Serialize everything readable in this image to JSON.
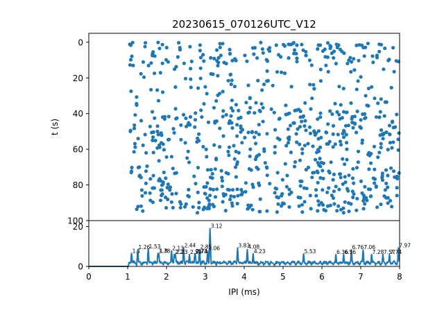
{
  "colors": {
    "series": "#1f77b4",
    "axes": "#000000",
    "background": "#ffffff"
  },
  "chart_data": [
    {
      "type": "scatter",
      "title": "20230615_070126UTC_V12",
      "ylabel": "t (s)",
      "xlim": [
        0,
        8
      ],
      "ylim": [
        100,
        -5
      ],
      "yticks": [
        "0",
        "20",
        "40",
        "60",
        "80",
        "100"
      ],
      "grid": false,
      "point_x_range": [
        1.05,
        8.0
      ],
      "point_y_range": [
        0,
        96
      ],
      "point_count": 820,
      "band_density": [
        {
          "t_from": 0,
          "t_to": 12,
          "level": "dense"
        },
        {
          "t_from": 12,
          "t_to": 38,
          "level": "sparse"
        },
        {
          "t_from": 38,
          "t_to": 62,
          "level": "dense"
        },
        {
          "t_from": 62,
          "t_to": 70,
          "level": "sparse"
        },
        {
          "t_from": 70,
          "t_to": 96,
          "level": "dense"
        }
      ]
    },
    {
      "type": "line",
      "xlabel": "IPI (ms)",
      "ylabel": "",
      "xlim": [
        0,
        8
      ],
      "ylim": [
        0,
        23
      ],
      "xticks": [
        "0",
        "1",
        "2",
        "3",
        "4",
        "5",
        "6",
        "7",
        "8"
      ],
      "yticks": [
        "0",
        "20"
      ],
      "grid": false,
      "peaks": [
        {
          "x": 1.1,
          "y": 6.5,
          "label": "1.1"
        },
        {
          "x": 1.26,
          "y": 8.3,
          "label": "1.26"
        },
        {
          "x": 1.53,
          "y": 8.7,
          "label": "1.53"
        },
        {
          "x": 1.78,
          "y": 6.5,
          "label": "1.78"
        },
        {
          "x": 1.8,
          "y": 6.5,
          "label": "1.8"
        },
        {
          "x": 2.13,
          "y": 7.8,
          "label": "2.13"
        },
        {
          "x": 2.2,
          "y": 6.0,
          "label": "2.2"
        },
        {
          "x": 2.23,
          "y": 6.0,
          "label": "2.23"
        },
        {
          "x": 2.44,
          "y": 9.3,
          "label": "2.44"
        },
        {
          "x": 2.59,
          "y": 6.0,
          "label": "2.59"
        },
        {
          "x": 2.73,
          "y": 6.3,
          "label": "2.73"
        },
        {
          "x": 2.74,
          "y": 6.3,
          "label": "2.74"
        },
        {
          "x": 2.85,
          "y": 8.5,
          "label": "2.85"
        },
        {
          "x": 3.06,
          "y": 7.8,
          "label": "3.06"
        },
        {
          "x": 3.12,
          "y": 19.0,
          "label": "3.12"
        },
        {
          "x": 3.83,
          "y": 9.3,
          "label": "3.83"
        },
        {
          "x": 4.08,
          "y": 8.5,
          "label": "4.08"
        },
        {
          "x": 4.23,
          "y": 6.3,
          "label": "4.23"
        },
        {
          "x": 5.53,
          "y": 6.3,
          "label": "5.53"
        },
        {
          "x": 6.36,
          "y": 6.0,
          "label": "6.36"
        },
        {
          "x": 6.56,
          "y": 6.0,
          "label": "6.56"
        },
        {
          "x": 6.76,
          "y": 8.3,
          "label": "6.76"
        },
        {
          "x": 7.06,
          "y": 8.3,
          "label": "7.06"
        },
        {
          "x": 7.28,
          "y": 6.0,
          "label": "7.28"
        },
        {
          "x": 7.57,
          "y": 6.0,
          "label": "7.57"
        },
        {
          "x": 7.74,
          "y": 6.0,
          "label": "7.74"
        },
        {
          "x": 7.97,
          "y": 9.3,
          "label": "7.97"
        }
      ]
    }
  ]
}
